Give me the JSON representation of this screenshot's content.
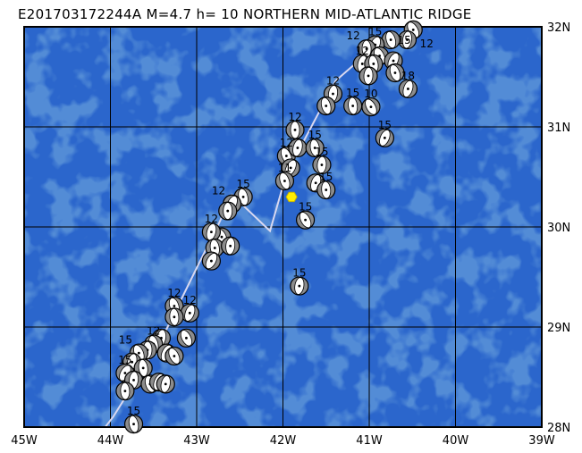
{
  "title": "E201703172244A M=4.7 h= 10 NORTHERN MID-ATLANTIC RIDGE",
  "map": {
    "lon_range": [
      -45,
      -39
    ],
    "lat_range": [
      28,
      32
    ],
    "ocean_color": "#2b66cc",
    "ocean_dark_color": "#1f52b4",
    "ridge_color": "#d8d8f0",
    "epicenter_color": "#ffee00",
    "beachball_color": "#8c8c8c",
    "lon_labels": [
      "45W",
      "44W",
      "43W",
      "42W",
      "41W",
      "40W",
      "39W"
    ],
    "lat_labels": [
      "32N",
      "31N",
      "30N",
      "29N",
      "28N"
    ],
    "epicenter": {
      "lon": -41.9,
      "lat": 30.3
    },
    "ridge": [
      [
        -44.06,
        28.0
      ],
      [
        -43.97,
        28.1
      ],
      [
        -43.73,
        28.43
      ],
      [
        -43.36,
        28.96
      ],
      [
        -43.0,
        29.59
      ],
      [
        -42.74,
        30.04
      ],
      [
        -42.59,
        30.32
      ],
      [
        -42.15,
        29.96
      ],
      [
        -41.96,
        30.53
      ],
      [
        -41.39,
        31.46
      ],
      [
        -41.03,
        31.73
      ],
      [
        -40.46,
        32.0
      ]
    ],
    "events": [
      [
        -40.49,
        31.97,
        "12"
      ],
      [
        -40.56,
        31.87,
        ""
      ],
      [
        -40.75,
        31.87,
        "15"
      ],
      [
        -40.93,
        31.82,
        "15"
      ],
      [
        -41.03,
        31.78,
        "12"
      ],
      [
        -40.88,
        31.71,
        ""
      ],
      [
        -41.08,
        31.63,
        "12"
      ],
      [
        -40.95,
        31.63,
        ""
      ],
      [
        -40.72,
        31.66,
        ""
      ],
      [
        -41.01,
        31.51,
        ""
      ],
      [
        -40.7,
        31.54,
        ""
      ],
      [
        -40.55,
        31.38,
        "18"
      ],
      [
        -41.19,
        31.21,
        "15"
      ],
      [
        -40.98,
        31.2,
        "10"
      ],
      [
        -41.42,
        31.33,
        "12"
      ],
      [
        -41.5,
        31.21,
        ""
      ],
      [
        -40.82,
        30.89,
        "15"
      ],
      [
        -41.86,
        30.97,
        "12"
      ],
      [
        -41.96,
        30.71,
        "12"
      ],
      [
        -41.83,
        30.79,
        ""
      ],
      [
        -41.63,
        30.79,
        "15"
      ],
      [
        -41.91,
        30.59,
        ""
      ],
      [
        -41.55,
        30.62,
        "15"
      ],
      [
        -41.98,
        30.46,
        "11"
      ],
      [
        -41.62,
        30.44,
        ""
      ],
      [
        -41.5,
        30.37,
        "15"
      ],
      [
        -41.74,
        30.07,
        "15"
      ],
      [
        -41.81,
        29.41,
        "15"
      ],
      [
        -42.46,
        30.3,
        "15"
      ],
      [
        -42.59,
        30.23,
        "12"
      ],
      [
        -42.64,
        30.16,
        ""
      ],
      [
        -42.71,
        29.9,
        ""
      ],
      [
        -42.83,
        29.95,
        "12"
      ],
      [
        -42.79,
        29.79,
        ""
      ],
      [
        -42.83,
        29.66,
        ""
      ],
      [
        -42.61,
        29.81,
        ""
      ],
      [
        -43.26,
        29.21,
        "12"
      ],
      [
        -43.08,
        29.14,
        "12"
      ],
      [
        -43.26,
        29.1,
        ""
      ],
      [
        -43.12,
        28.89,
        ""
      ],
      [
        -43.41,
        28.89,
        ""
      ],
      [
        -43.5,
        28.83,
        "12"
      ],
      [
        -43.35,
        28.74,
        ""
      ],
      [
        -43.57,
        28.77,
        ""
      ],
      [
        -43.67,
        28.74,
        "15"
      ],
      [
        -43.75,
        28.65,
        ""
      ],
      [
        -43.62,
        28.59,
        ""
      ],
      [
        -43.83,
        28.54,
        "15"
      ],
      [
        -43.73,
        28.47,
        ""
      ],
      [
        -43.54,
        28.43,
        ""
      ],
      [
        -43.44,
        28.45,
        ""
      ],
      [
        -43.83,
        28.36,
        ""
      ],
      [
        -43.26,
        28.71,
        ""
      ],
      [
        -43.36,
        28.43,
        ""
      ],
      [
        -43.73,
        28.03,
        "15"
      ]
    ]
  }
}
